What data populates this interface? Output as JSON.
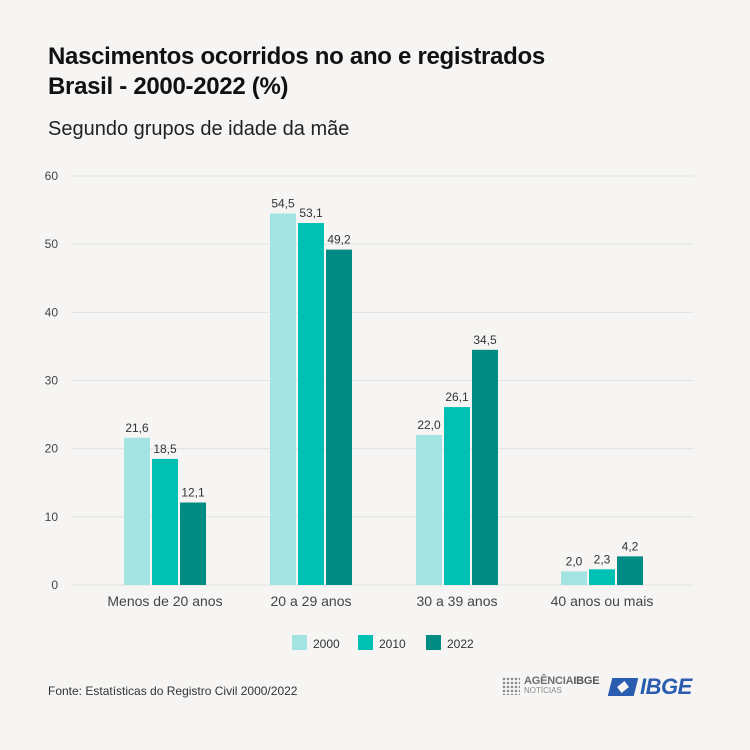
{
  "header": {
    "title_line1": "Nascimentos ocorridos no ano e registrados",
    "title_line2": "Brasil - 2000-2022  (%)",
    "subtitle": "Segundo grupos de idade da mãe"
  },
  "footer": {
    "source": "Fonte: Estatísticas do Registro Civil 2000/2022",
    "agencia_line1_a": "AGÊNCIA",
    "agencia_line1_b": "IBGE",
    "agencia_line2": "NOTÍCIAS",
    "ibge_logo": "IBGE"
  },
  "chart_data": {
    "type": "bar",
    "categories": [
      "Menos de 20 anos",
      "20 a 29 anos",
      "30 a 39 anos",
      "40 anos ou mais"
    ],
    "series": [
      {
        "name": "2000",
        "color": "#a3e3e2",
        "values": [
          21.6,
          54.5,
          22.0,
          2.0
        ],
        "labels": [
          "21,6",
          "54,5",
          "22,0",
          "2,0"
        ]
      },
      {
        "name": "2010",
        "color": "#00c0b4",
        "values": [
          18.5,
          53.1,
          26.1,
          2.3
        ],
        "labels": [
          "18,5",
          "53,1",
          "26,1",
          "2,3"
        ]
      },
      {
        "name": "2022",
        "color": "#008c84",
        "values": [
          12.1,
          49.2,
          34.5,
          4.2
        ],
        "labels": [
          "12,1",
          "49,2",
          "34,5",
          "4,2"
        ]
      }
    ],
    "yticks": [
      0,
      10,
      20,
      30,
      40,
      50,
      60
    ],
    "ylim": [
      0,
      60
    ],
    "grid": true,
    "legend_position": "bottom-center"
  }
}
